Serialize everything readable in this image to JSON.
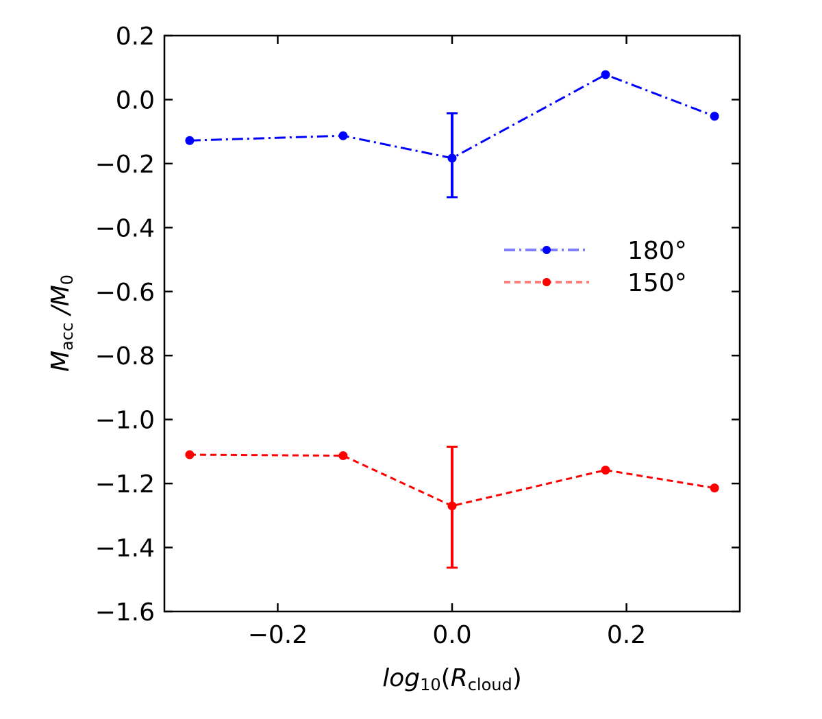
{
  "chart_data": {
    "type": "line",
    "title": "",
    "xlabel": {
      "main": "log",
      "sub": "10",
      "open": "(",
      "var": "R",
      "varsub": "cloud",
      "close": ")"
    },
    "ylabel": {
      "main": "M",
      "sub": "acc",
      "mid": " /M",
      "sub2": "0"
    },
    "xlim": [
      -0.33,
      0.33
    ],
    "ylim": [
      -1.6,
      0.2
    ],
    "xticks": [
      {
        "value": -0.2,
        "label": "−0.2"
      },
      {
        "value": 0.0,
        "label": "0.0"
      },
      {
        "value": 0.2,
        "label": "0.2"
      }
    ],
    "yticks": [
      {
        "value": 0.2,
        "label": "0.2"
      },
      {
        "value": 0.0,
        "label": "0.0"
      },
      {
        "value": -0.2,
        "label": "−0.2"
      },
      {
        "value": -0.4,
        "label": "−0.4"
      },
      {
        "value": -0.6,
        "label": "−0.6"
      },
      {
        "value": -0.8,
        "label": "−0.8"
      },
      {
        "value": -1.0,
        "label": "−1.0"
      },
      {
        "value": -1.2,
        "label": "−1.2"
      },
      {
        "value": -1.4,
        "label": "−1.4"
      },
      {
        "value": -1.6,
        "label": "−1.6"
      }
    ],
    "grid": false,
    "legend_position": "right",
    "series": [
      {
        "name": "180°",
        "color": "#0000ff",
        "linestyle": "dashdot",
        "x": [
          -0.301,
          -0.125,
          0.0,
          0.176,
          0.301
        ],
        "y": [
          -0.128,
          -0.113,
          -0.183,
          0.078,
          -0.052
        ],
        "errorbars": [
          {
            "x": 0.0,
            "low": -0.305,
            "high": -0.043
          }
        ]
      },
      {
        "name": "150°",
        "color": "#ff0000",
        "linestyle": "dashed",
        "x": [
          -0.301,
          -0.125,
          0.0,
          0.176,
          0.301
        ],
        "y": [
          -1.11,
          -1.113,
          -1.27,
          -1.158,
          -1.214
        ],
        "errorbars": [
          {
            "x": 0.0,
            "low": -1.463,
            "high": -1.085
          }
        ]
      }
    ]
  }
}
